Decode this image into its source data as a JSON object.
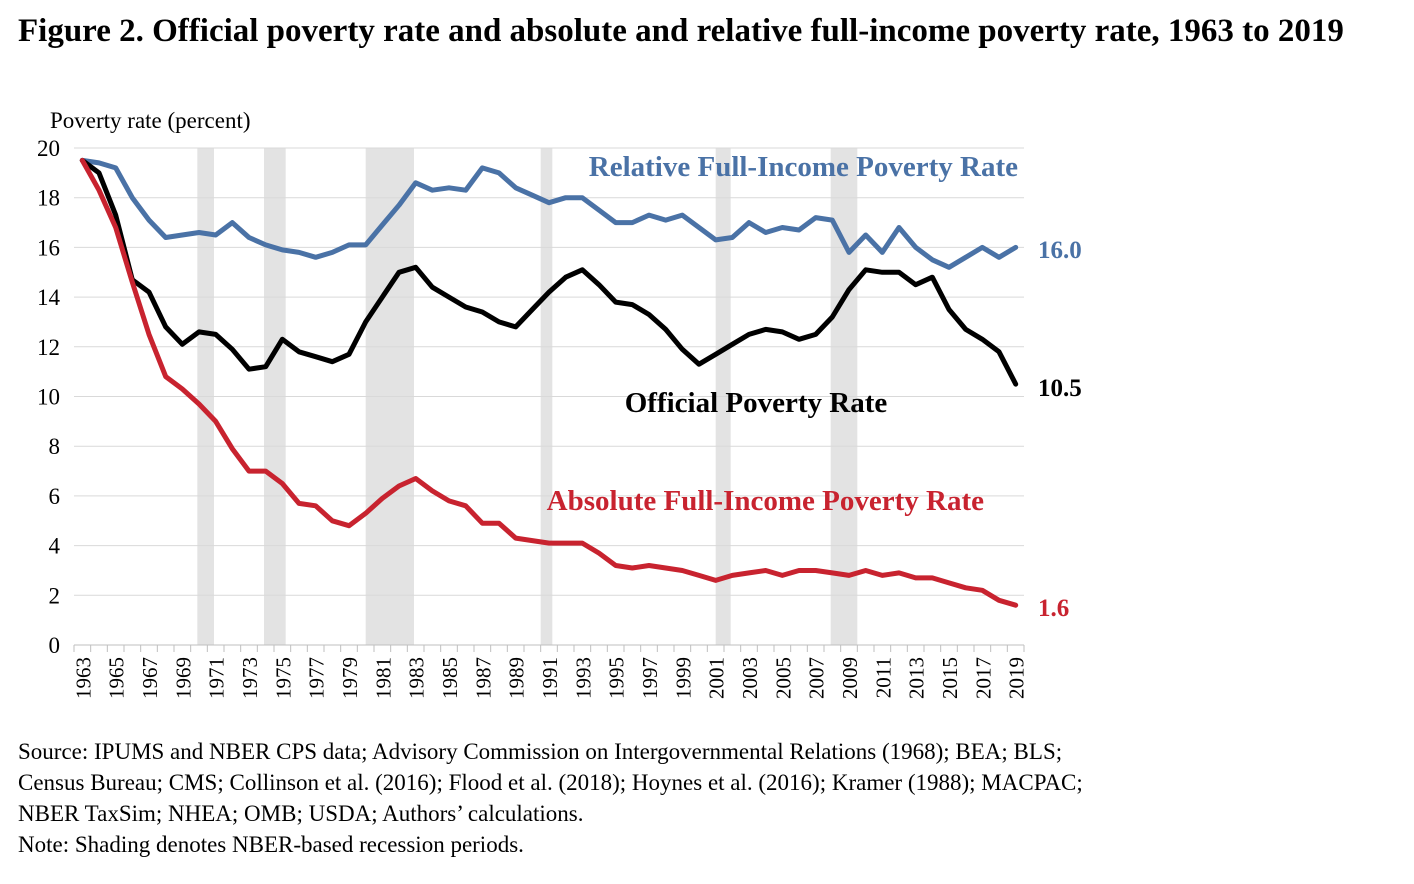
{
  "title": "Figure 2. Official poverty rate and absolute and relative full-income poverty rate, 1963 to 2019",
  "chart_data": {
    "type": "line",
    "title": "Figure 2. Official poverty rate and absolute and relative full-income poverty rate, 1963 to 2019",
    "ylabel": "Poverty rate (percent)",
    "xlabel": "",
    "ylim": [
      0,
      20
    ],
    "yticks": [
      0,
      2,
      4,
      6,
      8,
      10,
      12,
      14,
      16,
      18,
      20
    ],
    "x": [
      1963,
      1964,
      1965,
      1966,
      1967,
      1968,
      1969,
      1970,
      1971,
      1972,
      1973,
      1974,
      1975,
      1976,
      1977,
      1978,
      1979,
      1980,
      1981,
      1982,
      1983,
      1984,
      1985,
      1986,
      1987,
      1988,
      1989,
      1990,
      1991,
      1992,
      1993,
      1994,
      1995,
      1996,
      1997,
      1998,
      1999,
      2000,
      2001,
      2002,
      2003,
      2004,
      2005,
      2006,
      2007,
      2008,
      2009,
      2010,
      2011,
      2012,
      2013,
      2014,
      2015,
      2016,
      2017,
      2018,
      2019
    ],
    "xticks": [
      "1963",
      "1965",
      "1967",
      "1969",
      "1971",
      "1973",
      "1975",
      "1977",
      "1979",
      "1981",
      "1983",
      "1985",
      "1987",
      "1989",
      "1991",
      "1993",
      "1995",
      "1997",
      "1999",
      "2001",
      "2003",
      "2005",
      "2007",
      "2009",
      "2011",
      "2013",
      "2015",
      "2017",
      "2019"
    ],
    "grid": true,
    "recessions": [
      [
        1969.9,
        1970.9
      ],
      [
        1973.9,
        1975.2
      ],
      [
        1980.0,
        1982.9
      ],
      [
        1990.5,
        1991.2
      ],
      [
        2001.0,
        2001.9
      ],
      [
        2007.9,
        2009.5
      ]
    ],
    "series": [
      {
        "name": "Relative Full-Income Poverty Rate",
        "color": "#4a72a6",
        "end_label": "16.0",
        "values": [
          19.5,
          19.4,
          19.2,
          18.0,
          17.1,
          16.4,
          16.5,
          16.6,
          16.5,
          17.0,
          16.4,
          16.1,
          15.9,
          15.8,
          15.6,
          15.8,
          16.1,
          16.1,
          16.9,
          17.7,
          18.6,
          18.3,
          18.4,
          18.3,
          19.2,
          19.0,
          18.4,
          18.1,
          17.8,
          18.0,
          18.0,
          17.5,
          17.0,
          17.0,
          17.3,
          17.1,
          17.3,
          16.8,
          16.3,
          16.4,
          17.0,
          16.6,
          16.8,
          16.7,
          17.2,
          17.1,
          15.8,
          16.5,
          15.8,
          16.8,
          16.0,
          15.5,
          15.2,
          15.6,
          16.0,
          15.6,
          16.0
        ]
      },
      {
        "name": "Official Poverty Rate",
        "color": "#000000",
        "end_label": "10.5",
        "values": [
          19.5,
          19.0,
          17.3,
          14.7,
          14.2,
          12.8,
          12.1,
          12.6,
          12.5,
          11.9,
          11.1,
          11.2,
          12.3,
          11.8,
          11.6,
          11.4,
          11.7,
          13.0,
          14.0,
          15.0,
          15.2,
          14.4,
          14.0,
          13.6,
          13.4,
          13.0,
          12.8,
          13.5,
          14.2,
          14.8,
          15.1,
          14.5,
          13.8,
          13.7,
          13.3,
          12.7,
          11.9,
          11.3,
          11.7,
          12.1,
          12.5,
          12.7,
          12.6,
          12.3,
          12.5,
          13.2,
          14.3,
          15.1,
          15.0,
          15.0,
          14.5,
          14.8,
          13.5,
          12.7,
          12.3,
          11.8,
          10.5
        ]
      },
      {
        "name": "Absolute Full-Income Poverty Rate",
        "color": "#c8232f",
        "end_label": "1.6",
        "values": [
          19.5,
          18.3,
          16.8,
          14.6,
          12.5,
          10.8,
          10.3,
          9.7,
          9.0,
          7.9,
          7.0,
          7.0,
          6.5,
          5.7,
          5.6,
          5.0,
          4.8,
          5.3,
          5.9,
          6.4,
          6.7,
          6.2,
          5.8,
          5.6,
          4.9,
          4.9,
          4.3,
          4.2,
          4.1,
          4.1,
          4.1,
          3.7,
          3.2,
          3.1,
          3.2,
          3.1,
          3.0,
          2.8,
          2.6,
          2.8,
          2.9,
          3.0,
          2.8,
          3.0,
          3.0,
          2.9,
          2.8,
          3.0,
          2.8,
          2.9,
          2.7,
          2.7,
          2.5,
          2.3,
          2.2,
          1.8,
          1.6
        ]
      }
    ]
  },
  "source_note": "Source: IPUMS and NBER CPS data; Advisory Commission on Intergovernmental Relations (1968); BEA; BLS;",
  "source_note_2": "Census Bureau; CMS; Collinson et al. (2016); Flood et al. (2018); Hoynes et al. (2016); Kramer (1988); MACPAC;",
  "source_note_3": "NBER TaxSim; NHEA; OMB; USDA; Authors’ calculations.",
  "note": "Note: Shading denotes NBER-based recession periods."
}
